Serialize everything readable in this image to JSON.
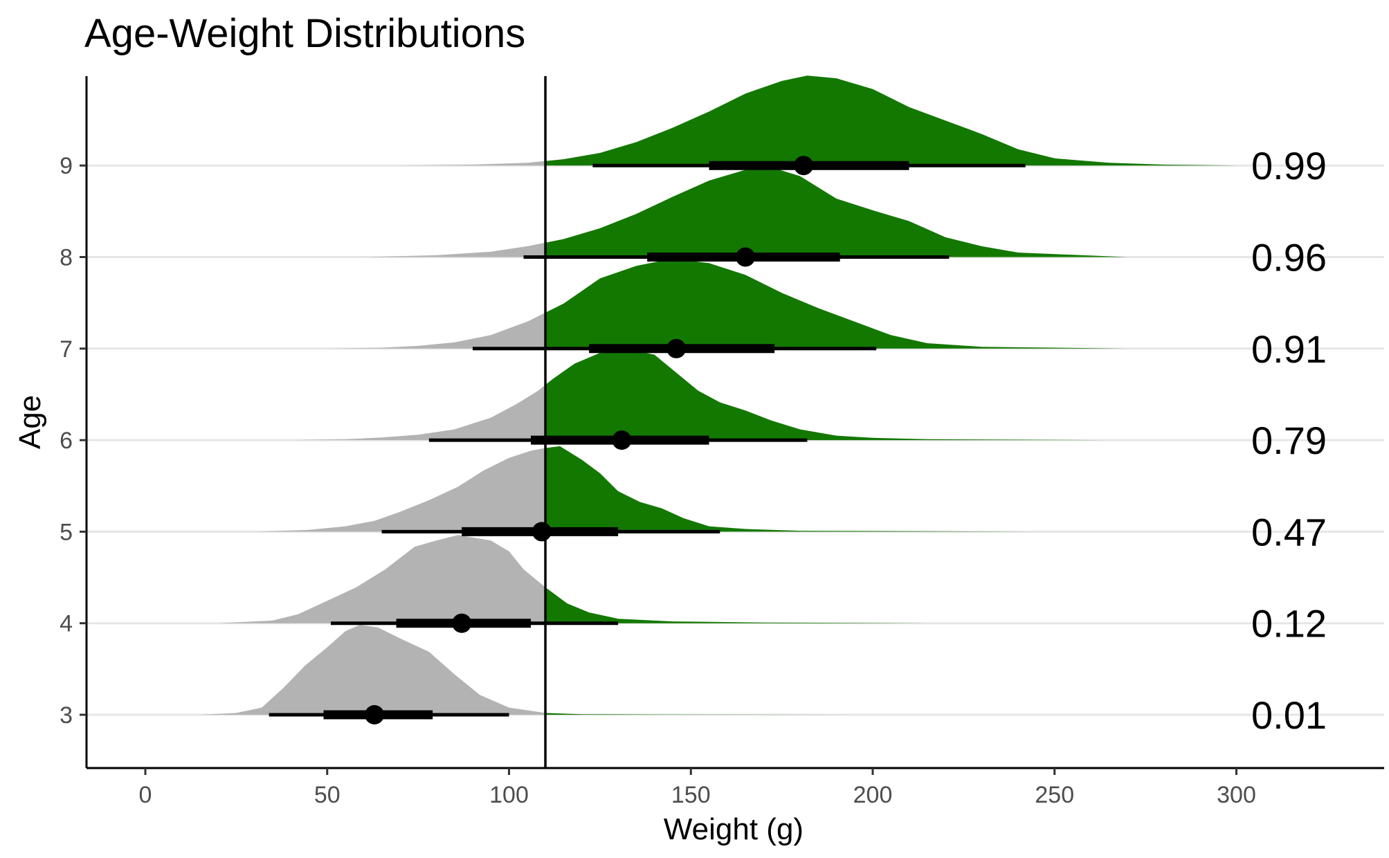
{
  "chart_data": {
    "type": "ridgeline",
    "title": "Age-Weight Distributions",
    "xlabel": "Weight (g)",
    "ylabel": "Age",
    "xlim": [
      -16,
      340
    ],
    "x_ticks": [
      0,
      50,
      100,
      150,
      200,
      250,
      300
    ],
    "threshold": 110,
    "colors": {
      "above": "#137800",
      "below": "#b3b3b3",
      "line": "#000000",
      "grid": "#e6e6e6"
    },
    "rows": [
      {
        "age": "3",
        "median": 63,
        "ci66": [
          49,
          79
        ],
        "ci95": [
          34,
          100
        ],
        "prob_above": "0.01",
        "range": [
          15,
          195
        ],
        "density": [
          [
            15,
            0
          ],
          [
            25,
            0.02
          ],
          [
            32,
            0.08
          ],
          [
            38,
            0.3
          ],
          [
            44,
            0.55
          ],
          [
            50,
            0.75
          ],
          [
            55,
            0.93
          ],
          [
            59,
            1.0
          ],
          [
            64,
            0.97
          ],
          [
            70,
            0.85
          ],
          [
            78,
            0.7
          ],
          [
            85,
            0.45
          ],
          [
            92,
            0.22
          ],
          [
            100,
            0.08
          ],
          [
            105,
            0.05
          ],
          [
            110,
            0.02
          ],
          [
            120,
            0.006
          ],
          [
            140,
            0.003
          ],
          [
            195,
            0
          ]
        ]
      },
      {
        "age": "4",
        "median": 87,
        "ci66": [
          69,
          106
        ],
        "ci95": [
          51,
          130
        ],
        "prob_above": "0.12",
        "range": [
          20,
          215
        ],
        "density": [
          [
            20,
            0
          ],
          [
            35,
            0.03
          ],
          [
            42,
            0.1
          ],
          [
            50,
            0.25
          ],
          [
            58,
            0.4
          ],
          [
            66,
            0.6
          ],
          [
            74,
            0.85
          ],
          [
            80,
            0.92
          ],
          [
            86,
            0.98
          ],
          [
            95,
            0.92
          ],
          [
            100,
            0.8
          ],
          [
            104,
            0.6
          ],
          [
            110,
            0.4
          ],
          [
            116,
            0.22
          ],
          [
            122,
            0.12
          ],
          [
            130,
            0.05
          ],
          [
            145,
            0.02
          ],
          [
            170,
            0.008
          ],
          [
            215,
            0
          ]
        ]
      },
      {
        "age": "5",
        "median": 109,
        "ci66": [
          87,
          130
        ],
        "ci95": [
          65,
          158
        ],
        "prob_above": "0.47",
        "range": [
          30,
          245
        ],
        "density": [
          [
            30,
            0
          ],
          [
            45,
            0.02
          ],
          [
            55,
            0.06
          ],
          [
            63,
            0.12
          ],
          [
            70,
            0.22
          ],
          [
            78,
            0.35
          ],
          [
            86,
            0.5
          ],
          [
            93,
            0.68
          ],
          [
            100,
            0.82
          ],
          [
            106,
            0.9
          ],
          [
            110,
            0.93
          ],
          [
            114,
            0.95
          ],
          [
            120,
            0.8
          ],
          [
            125,
            0.65
          ],
          [
            130,
            0.45
          ],
          [
            136,
            0.33
          ],
          [
            142,
            0.26
          ],
          [
            148,
            0.15
          ],
          [
            155,
            0.06
          ],
          [
            165,
            0.03
          ],
          [
            180,
            0.01
          ],
          [
            245,
            0
          ]
        ]
      },
      {
        "age": "6",
        "median": 131,
        "ci66": [
          106,
          155
        ],
        "ci95": [
          78,
          182
        ],
        "prob_above": "0.79",
        "range": [
          40,
          265
        ],
        "density": [
          [
            40,
            0
          ],
          [
            55,
            0.01
          ],
          [
            65,
            0.03
          ],
          [
            75,
            0.06
          ],
          [
            85,
            0.12
          ],
          [
            95,
            0.25
          ],
          [
            102,
            0.4
          ],
          [
            108,
            0.55
          ],
          [
            112,
            0.68
          ],
          [
            118,
            0.85
          ],
          [
            125,
            0.97
          ],
          [
            134,
            1.0
          ],
          [
            140,
            0.95
          ],
          [
            146,
            0.75
          ],
          [
            152,
            0.55
          ],
          [
            158,
            0.42
          ],
          [
            165,
            0.33
          ],
          [
            172,
            0.22
          ],
          [
            180,
            0.12
          ],
          [
            190,
            0.05
          ],
          [
            200,
            0.025
          ],
          [
            215,
            0.01
          ],
          [
            265,
            0
          ]
        ]
      },
      {
        "age": "7",
        "median": 146,
        "ci66": [
          122,
          173
        ],
        "ci95": [
          90,
          201
        ],
        "prob_above": "0.91",
        "range": [
          50,
          270
        ],
        "density": [
          [
            50,
            0
          ],
          [
            65,
            0.01
          ],
          [
            75,
            0.03
          ],
          [
            85,
            0.07
          ],
          [
            95,
            0.15
          ],
          [
            105,
            0.3
          ],
          [
            115,
            0.5
          ],
          [
            125,
            0.78
          ],
          [
            135,
            0.92
          ],
          [
            145,
            1.0
          ],
          [
            155,
            0.95
          ],
          [
            165,
            0.82
          ],
          [
            175,
            0.62
          ],
          [
            185,
            0.45
          ],
          [
            195,
            0.3
          ],
          [
            205,
            0.15
          ],
          [
            215,
            0.06
          ],
          [
            230,
            0.02
          ],
          [
            270,
            0
          ]
        ]
      },
      {
        "age": "8",
        "median": 165,
        "ci66": [
          138,
          191
        ],
        "ci95": [
          104,
          221
        ],
        "prob_above": "0.96",
        "range": [
          60,
          270
        ],
        "density": [
          [
            60,
            0
          ],
          [
            80,
            0.02
          ],
          [
            95,
            0.06
          ],
          [
            105,
            0.12
          ],
          [
            115,
            0.2
          ],
          [
            125,
            0.32
          ],
          [
            135,
            0.48
          ],
          [
            145,
            0.67
          ],
          [
            155,
            0.85
          ],
          [
            165,
            0.97
          ],
          [
            172,
            1.0
          ],
          [
            180,
            0.9
          ],
          [
            190,
            0.65
          ],
          [
            200,
            0.52
          ],
          [
            210,
            0.4
          ],
          [
            220,
            0.22
          ],
          [
            230,
            0.12
          ],
          [
            240,
            0.05
          ],
          [
            255,
            0.025
          ],
          [
            270,
            0
          ]
        ]
      },
      {
        "age": "9",
        "median": 181,
        "ci66": [
          155,
          210
        ],
        "ci95": [
          123,
          242
        ],
        "prob_above": "0.99",
        "range": [
          70,
          300
        ],
        "density": [
          [
            70,
            0
          ],
          [
            90,
            0.01
          ],
          [
            105,
            0.03
          ],
          [
            115,
            0.07
          ],
          [
            125,
            0.14
          ],
          [
            135,
            0.26
          ],
          [
            145,
            0.42
          ],
          [
            155,
            0.6
          ],
          [
            165,
            0.8
          ],
          [
            175,
            0.94
          ],
          [
            182,
            1.0
          ],
          [
            190,
            0.97
          ],
          [
            200,
            0.85
          ],
          [
            210,
            0.65
          ],
          [
            220,
            0.5
          ],
          [
            230,
            0.35
          ],
          [
            240,
            0.18
          ],
          [
            250,
            0.08
          ],
          [
            265,
            0.03
          ],
          [
            280,
            0.01
          ],
          [
            300,
            0
          ]
        ]
      }
    ]
  }
}
